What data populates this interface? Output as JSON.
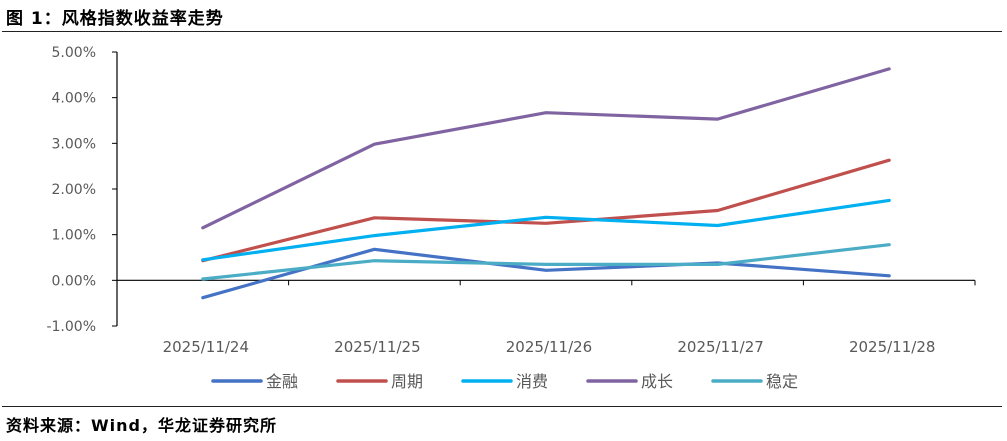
{
  "figure": {
    "title": "图 1：风格指数收益率走势",
    "source": "资料来源：Wind，华龙证券研究所"
  },
  "chart_data": {
    "type": "line",
    "title": "风格指数收益率走势",
    "xlabel": "",
    "ylabel": "",
    "categories": [
      "2025/11/24",
      "2025/11/25",
      "2025/11/26",
      "2025/11/27",
      "2025/11/28"
    ],
    "ylim": [
      -0.01,
      0.05
    ],
    "y_ticks": [
      -0.01,
      0.0,
      0.01,
      0.02,
      0.03,
      0.04,
      0.05
    ],
    "y_tick_labels": [
      "-1.00%",
      "0.00%",
      "1.00%",
      "2.00%",
      "3.00%",
      "4.00%",
      "5.00%"
    ],
    "grid": false,
    "legend_position": "bottom",
    "series": [
      {
        "name": "金融",
        "color": "#4472C4",
        "values": [
          -0.0038,
          0.0068,
          0.0022,
          0.0038,
          0.001
        ]
      },
      {
        "name": "周期",
        "color": "#C0504D",
        "values": [
          0.0043,
          0.0137,
          0.0125,
          0.0153,
          0.0263
        ]
      },
      {
        "name": "消费",
        "color": "#00B0F0",
        "values": [
          0.0045,
          0.0098,
          0.0138,
          0.012,
          0.0175
        ]
      },
      {
        "name": "成长",
        "color": "#8064A2",
        "values": [
          0.0115,
          0.0298,
          0.0367,
          0.0353,
          0.0463
        ]
      },
      {
        "name": "稳定",
        "color": "#4BACC6",
        "values": [
          0.0003,
          0.0043,
          0.0035,
          0.0035,
          0.0078
        ]
      }
    ]
  }
}
